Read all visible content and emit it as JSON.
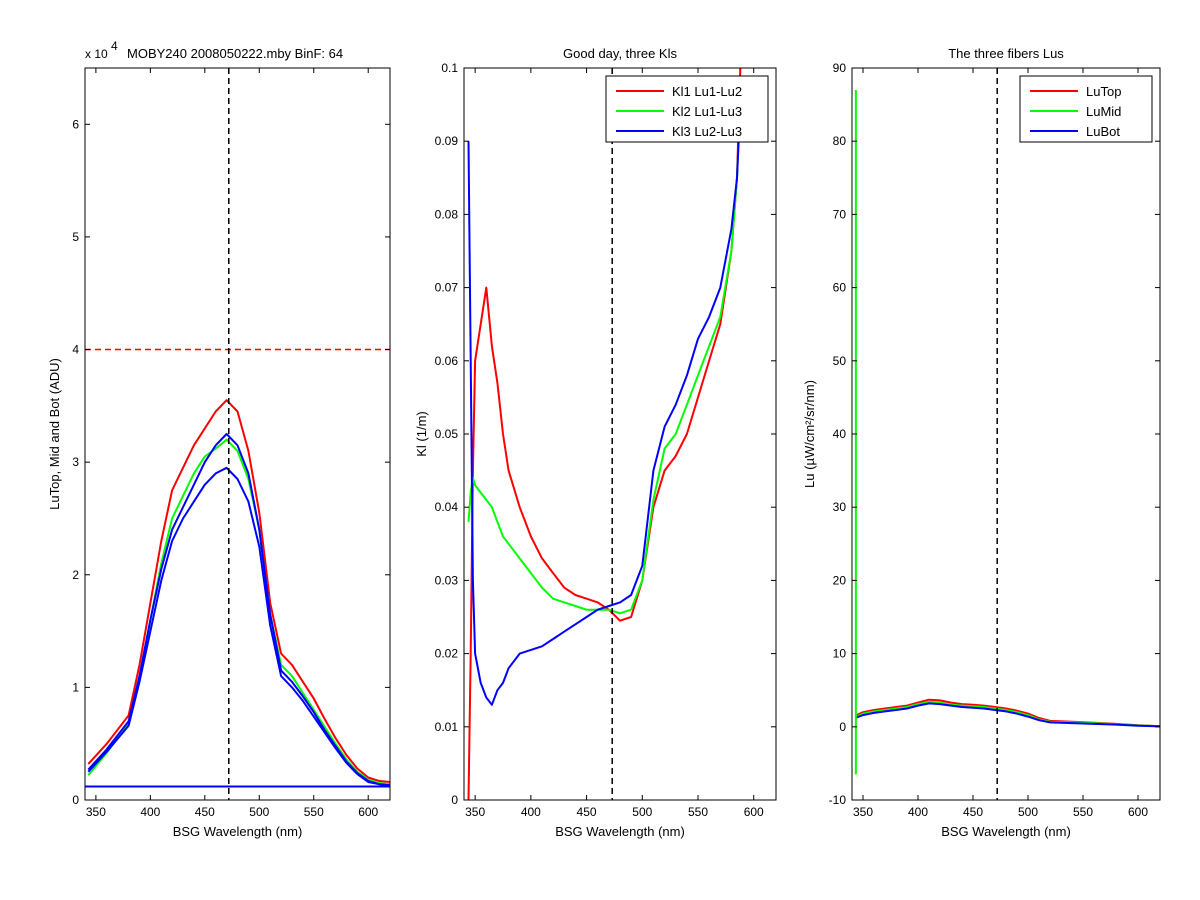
{
  "chart_data": [
    {
      "type": "line",
      "title": "MOBY240  2008050222.mby BinF: 64",
      "exponent_label": "x 10",
      "exponent_power": "4",
      "xlabel": "BSG Wavelength (nm)",
      "ylabel": "LuTop, Mid and Bot (ADU)",
      "xlim": [
        340,
        620
      ],
      "ylim": [
        0,
        6.5
      ],
      "xticks": [
        350,
        400,
        450,
        500,
        550,
        600
      ],
      "yticks": [
        0,
        1,
        2,
        3,
        4,
        5,
        6
      ],
      "grid": false,
      "vline": 472,
      "hline": {
        "y": 4.0,
        "color": "#ff0000"
      },
      "baseline": {
        "y": 0.12,
        "color": "#0000ff"
      },
      "series": [
        {
          "color": "#ff0000",
          "x": [
            343,
            360,
            380,
            390,
            400,
            410,
            420,
            430,
            440,
            450,
            460,
            470,
            480,
            490,
            500,
            510,
            520,
            530,
            540,
            550,
            560,
            570,
            580,
            590,
            600,
            610,
            620
          ],
          "y": [
            0.32,
            0.5,
            0.75,
            1.2,
            1.75,
            2.3,
            2.75,
            2.95,
            3.15,
            3.3,
            3.45,
            3.55,
            3.45,
            3.1,
            2.55,
            1.75,
            1.3,
            1.2,
            1.05,
            0.9,
            0.72,
            0.55,
            0.4,
            0.28,
            0.2,
            0.17,
            0.16
          ]
        },
        {
          "color": "#00ff00",
          "x": [
            343,
            360,
            380,
            390,
            400,
            410,
            420,
            430,
            440,
            450,
            460,
            470,
            480,
            490,
            500,
            510,
            520,
            530,
            540,
            550,
            560,
            570,
            580,
            590,
            600,
            610,
            620
          ],
          "y": [
            0.22,
            0.42,
            0.68,
            1.1,
            1.6,
            2.1,
            2.5,
            2.7,
            2.9,
            3.05,
            3.12,
            3.2,
            3.1,
            2.85,
            2.4,
            1.65,
            1.2,
            1.1,
            0.95,
            0.8,
            0.65,
            0.5,
            0.36,
            0.25,
            0.18,
            0.15,
            0.14
          ]
        },
        {
          "color": "#0000ff",
          "x": [
            343,
            360,
            380,
            390,
            400,
            410,
            420,
            430,
            440,
            450,
            460,
            470,
            480,
            490,
            500,
            510,
            520,
            530,
            540,
            550,
            560,
            570,
            580,
            590,
            600,
            610,
            620
          ],
          "y": [
            0.27,
            0.45,
            0.7,
            1.1,
            1.6,
            2.05,
            2.4,
            2.6,
            2.8,
            3.0,
            3.15,
            3.25,
            3.15,
            2.9,
            2.4,
            1.65,
            1.15,
            1.05,
            0.92,
            0.78,
            0.62,
            0.48,
            0.34,
            0.24,
            0.17,
            0.14,
            0.13
          ]
        },
        {
          "color": "#0000ff",
          "x": [
            343,
            360,
            380,
            390,
            400,
            410,
            420,
            430,
            440,
            450,
            460,
            470,
            480,
            490,
            500,
            510,
            520,
            530,
            540,
            550,
            560,
            570,
            580,
            590,
            600,
            610,
            620
          ],
          "y": [
            0.25,
            0.43,
            0.66,
            1.05,
            1.5,
            1.95,
            2.3,
            2.5,
            2.65,
            2.8,
            2.9,
            2.95,
            2.85,
            2.65,
            2.25,
            1.55,
            1.1,
            1.0,
            0.88,
            0.74,
            0.6,
            0.46,
            0.33,
            0.23,
            0.16,
            0.14,
            0.13
          ]
        }
      ]
    },
    {
      "type": "line",
      "title": "Good day, three Kls",
      "xlabel": "BSG Wavelength (nm)",
      "ylabel": "Kl (1/m)",
      "xlim": [
        340,
        620
      ],
      "ylim": [
        0,
        0.1
      ],
      "xticks": [
        350,
        400,
        450,
        500,
        550,
        600
      ],
      "yticks": [
        "0",
        "0.01",
        "0.02",
        "0.03",
        "0.04",
        "0.05",
        "0.06",
        "0.07",
        "0.08",
        "0.09",
        "0.1"
      ],
      "grid": false,
      "vline": 473,
      "legend": "top-right",
      "series": [
        {
          "name": "Kl1 Lu1-Lu2",
          "color": "#ff0000",
          "x": [
            344,
            346,
            348,
            350,
            355,
            360,
            365,
            370,
            375,
            380,
            390,
            400,
            410,
            420,
            430,
            440,
            450,
            460,
            470,
            480,
            490,
            500,
            510,
            520,
            530,
            540,
            550,
            560,
            570,
            580,
            585,
            588
          ],
          "y": [
            0.0,
            0.02,
            0.045,
            0.06,
            0.065,
            0.07,
            0.062,
            0.057,
            0.05,
            0.045,
            0.04,
            0.036,
            0.033,
            0.031,
            0.029,
            0.028,
            0.0275,
            0.027,
            0.026,
            0.0245,
            0.025,
            0.03,
            0.04,
            0.045,
            0.047,
            0.05,
            0.055,
            0.06,
            0.065,
            0.075,
            0.085,
            0.1
          ]
        },
        {
          "name": "Kl2 Lu1-Lu3",
          "color": "#00ff00",
          "x": [
            344,
            346,
            348,
            350,
            355,
            360,
            365,
            370,
            375,
            380,
            390,
            400,
            410,
            420,
            430,
            440,
            450,
            460,
            470,
            480,
            490,
            500,
            510,
            520,
            530,
            540,
            550,
            560,
            570,
            580,
            585,
            588
          ],
          "y": [
            0.038,
            0.042,
            0.044,
            0.043,
            0.042,
            0.041,
            0.04,
            0.038,
            0.036,
            0.035,
            0.033,
            0.031,
            0.029,
            0.0275,
            0.027,
            0.0265,
            0.026,
            0.026,
            0.026,
            0.0255,
            0.026,
            0.03,
            0.041,
            0.048,
            0.05,
            0.054,
            0.058,
            0.062,
            0.066,
            0.075,
            0.085,
            0.095
          ]
        },
        {
          "name": "Kl3 Lu2-Lu3",
          "color": "#0000ff",
          "x": [
            344,
            346,
            348,
            350,
            355,
            360,
            365,
            370,
            375,
            380,
            390,
            400,
            410,
            420,
            430,
            440,
            450,
            460,
            470,
            480,
            490,
            500,
            510,
            520,
            530,
            540,
            550,
            560,
            570,
            580,
            585,
            588
          ],
          "y": [
            0.09,
            0.06,
            0.03,
            0.02,
            0.016,
            0.014,
            0.013,
            0.015,
            0.016,
            0.018,
            0.02,
            0.0205,
            0.021,
            0.022,
            0.023,
            0.024,
            0.025,
            0.026,
            0.0265,
            0.027,
            0.028,
            0.032,
            0.045,
            0.051,
            0.054,
            0.058,
            0.063,
            0.066,
            0.07,
            0.078,
            0.085,
            0.095
          ]
        }
      ]
    },
    {
      "type": "line",
      "title": "The three fibers Lus",
      "xlabel": "BSG Wavelength (nm)",
      "ylabel": "Lu (µW/cm²/sr/nm)",
      "xlim": [
        340,
        620
      ],
      "ylim": [
        -10,
        90
      ],
      "xticks": [
        350,
        400,
        450,
        500,
        550,
        600
      ],
      "yticks": [
        -10,
        0,
        10,
        20,
        30,
        40,
        50,
        60,
        70,
        80,
        90
      ],
      "grid": false,
      "vline": 472,
      "legend": "top-right",
      "spike": {
        "x": 343.5,
        "y_low": -6.5,
        "y_high": 87,
        "color": "#00ff00"
      },
      "series": [
        {
          "name": "LuTop",
          "color": "#ff0000",
          "x": [
            343,
            350,
            360,
            370,
            380,
            390,
            400,
            410,
            420,
            430,
            440,
            450,
            460,
            470,
            480,
            490,
            500,
            510,
            520,
            540,
            560,
            580,
            600,
            620
          ],
          "y": [
            1.5,
            2.0,
            2.3,
            2.5,
            2.7,
            2.9,
            3.3,
            3.7,
            3.6,
            3.3,
            3.1,
            3.0,
            2.9,
            2.7,
            2.5,
            2.2,
            1.8,
            1.2,
            0.8,
            0.7,
            0.55,
            0.4,
            0.2,
            0.1
          ]
        },
        {
          "name": "LuMid",
          "color": "#00ff00",
          "x": [
            343,
            350,
            360,
            370,
            380,
            390,
            400,
            410,
            420,
            430,
            440,
            450,
            460,
            470,
            480,
            490,
            500,
            510,
            520,
            540,
            560,
            580,
            600,
            620
          ],
          "y": [
            1.3,
            1.8,
            2.1,
            2.3,
            2.5,
            2.7,
            3.1,
            3.4,
            3.3,
            3.0,
            2.9,
            2.8,
            2.7,
            2.5,
            2.3,
            2.0,
            1.6,
            1.0,
            0.7,
            0.6,
            0.5,
            0.35,
            0.18,
            0.08
          ]
        },
        {
          "name": "LuBot",
          "color": "#0000ff",
          "x": [
            343,
            350,
            360,
            370,
            380,
            390,
            400,
            410,
            420,
            430,
            440,
            450,
            460,
            470,
            480,
            490,
            500,
            510,
            520,
            540,
            560,
            580,
            600,
            620
          ],
          "y": [
            1.2,
            1.6,
            1.9,
            2.1,
            2.3,
            2.5,
            2.9,
            3.2,
            3.1,
            2.9,
            2.7,
            2.6,
            2.5,
            2.3,
            2.1,
            1.8,
            1.4,
            0.9,
            0.6,
            0.5,
            0.4,
            0.3,
            0.15,
            0.05
          ]
        }
      ]
    }
  ]
}
